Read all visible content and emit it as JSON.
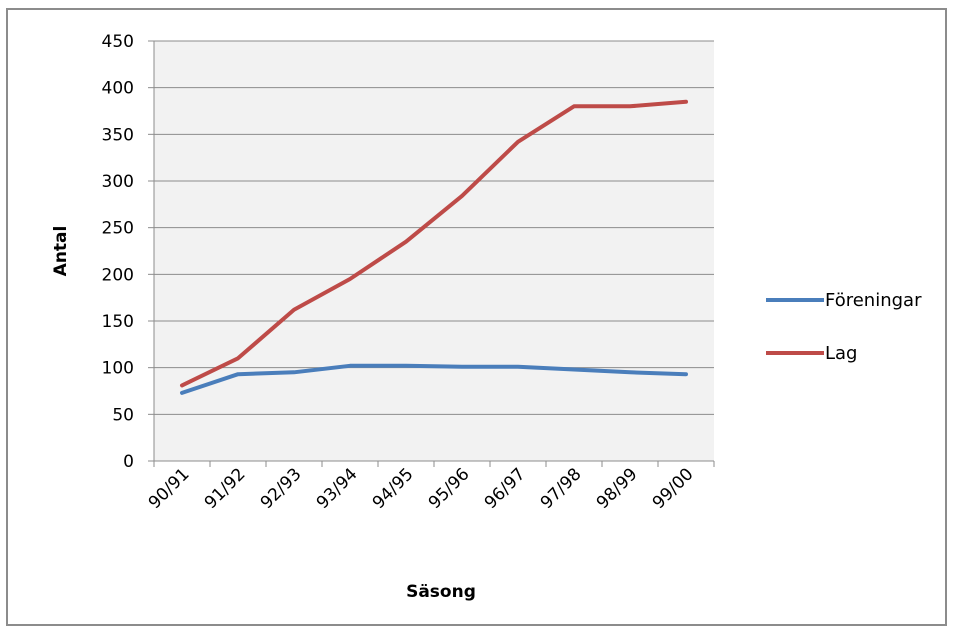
{
  "chart_data": {
    "type": "line",
    "title": "",
    "xlabel": "Säsong",
    "ylabel": "Antal",
    "categories": [
      "90/91",
      "91/92",
      "92/93",
      "93/94",
      "94/95",
      "95/96",
      "96/97",
      "97/98",
      "98/99",
      "99/00"
    ],
    "y_ticks": [
      "0",
      "50",
      "100",
      "150",
      "200",
      "250",
      "300",
      "350",
      "400",
      "450"
    ],
    "ylim": [
      0,
      450
    ],
    "grid": true,
    "legend_position": "right",
    "series": [
      {
        "name": "Föreningar",
        "color": "#4a7ebb",
        "values": [
          73,
          93,
          95,
          102,
          102,
          101,
          101,
          98,
          95,
          93
        ]
      },
      {
        "name": "Lag",
        "color": "#be4b48",
        "values": [
          81,
          110,
          162,
          195,
          235,
          284,
          342,
          380,
          380,
          385
        ]
      }
    ]
  }
}
